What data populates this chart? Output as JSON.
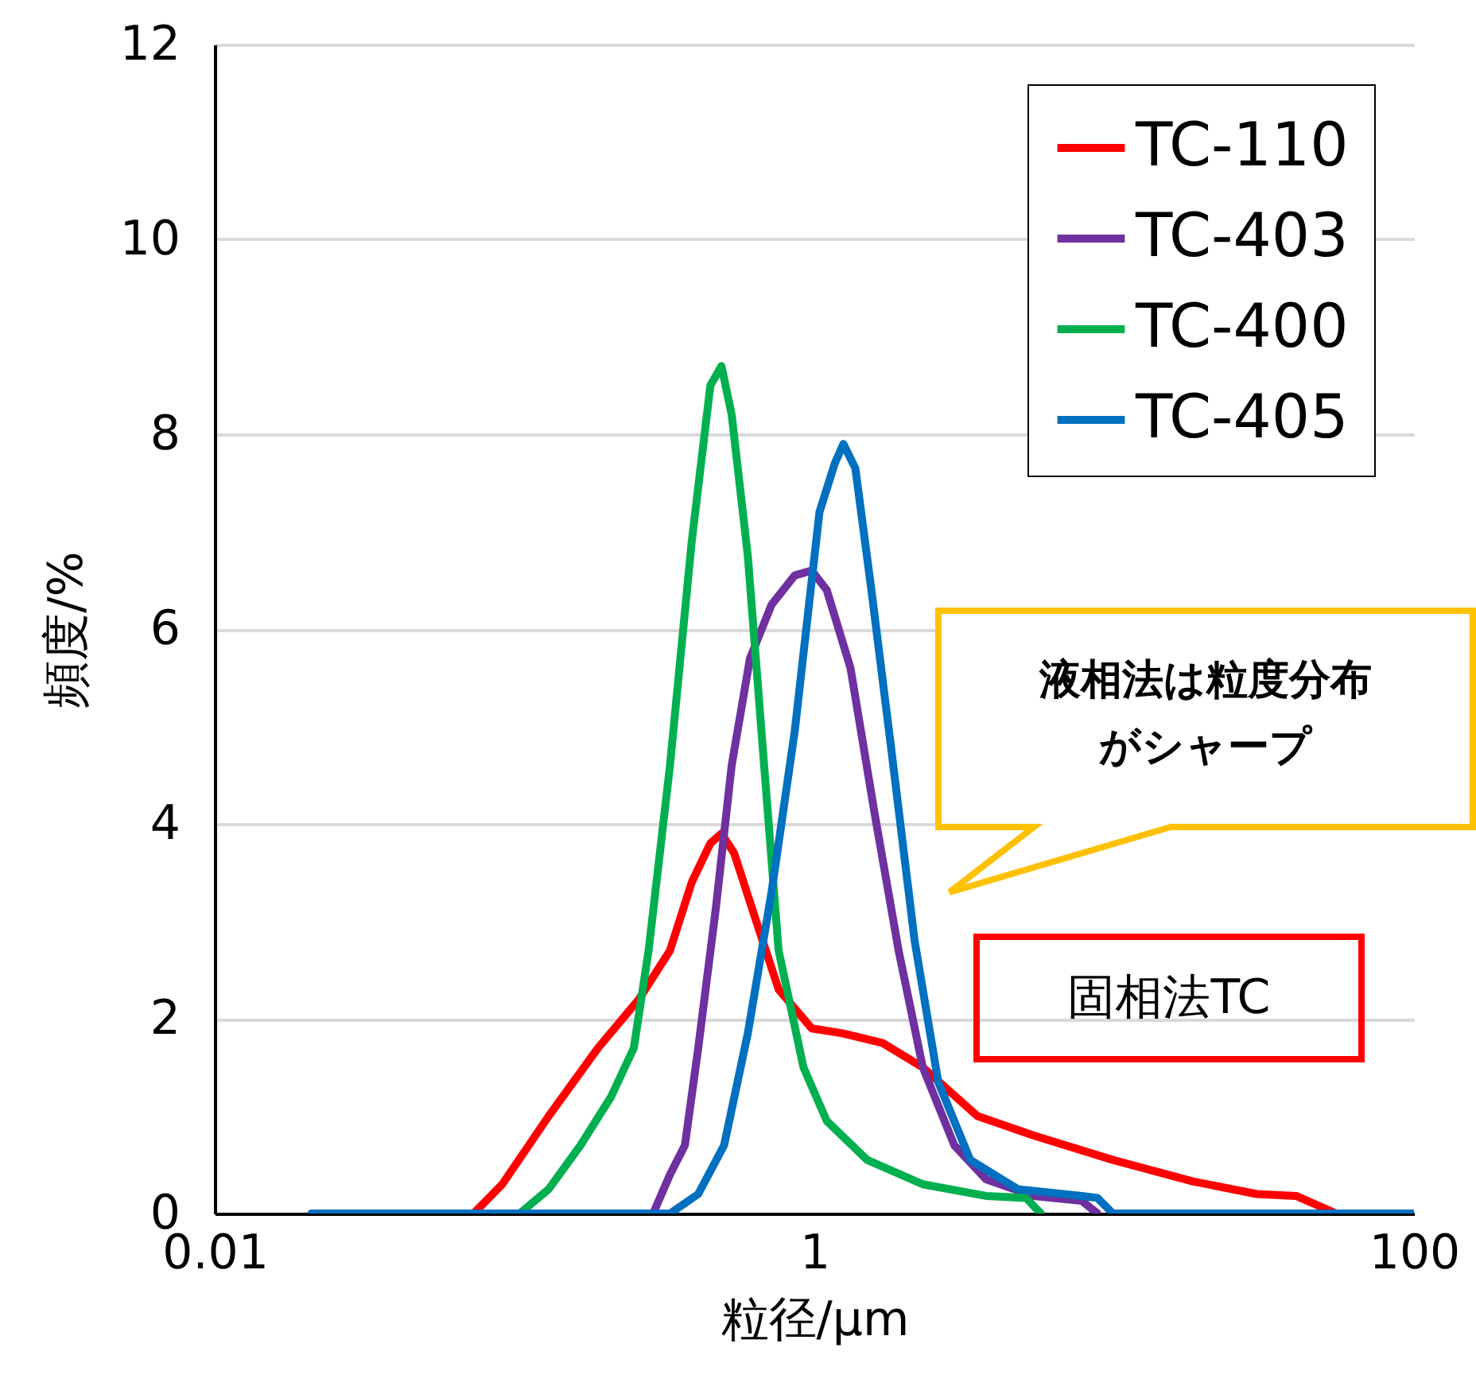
{
  "chart_data": {
    "type": "line",
    "xlabel": "粒径/μm",
    "ylabel": "頻度/%",
    "log": "x",
    "xlim": [
      0.01,
      100
    ],
    "xticks": [
      0.01,
      1,
      100
    ],
    "ylim": [
      0,
      12
    ],
    "yticks": [
      0,
      2,
      4,
      6,
      8,
      10,
      12
    ],
    "grid": "y",
    "legend": "top right",
    "marker": "none",
    "line_style": "solid",
    "annotations": [
      "液相法は粒度分布がシャープ",
      "固相法TC"
    ],
    "series": [
      {
        "name": "TC-110",
        "color": "#ff0000",
        "x": [
          0.073,
          0.091,
          0.13,
          0.19,
          0.26,
          0.33,
          0.39,
          0.45,
          0.49,
          0.54,
          0.64,
          0.76,
          0.98,
          1.24,
          1.69,
          2.3,
          3.5,
          5.4,
          9.9,
          18.3,
          29.9,
          40.5,
          55,
          100
        ],
        "values": [
          0,
          0.3,
          1.0,
          1.7,
          2.2,
          2.7,
          3.4,
          3.8,
          3.9,
          3.7,
          3.0,
          2.3,
          1.9,
          1.85,
          1.75,
          1.5,
          1.0,
          0.8,
          0.55,
          0.33,
          0.2,
          0.18,
          0,
          0
        ]
      },
      {
        "name": "TC-403",
        "color": "#7030a0",
        "x": [
          0.29,
          0.33,
          0.37,
          0.41,
          0.47,
          0.53,
          0.61,
          0.72,
          0.86,
          0.98,
          1.1,
          1.32,
          1.59,
          1.91,
          2.3,
          2.93,
          3.74,
          5.4,
          7.8,
          8.8
        ],
        "values": [
          0,
          0.4,
          0.7,
          1.7,
          3.15,
          4.6,
          5.7,
          6.25,
          6.55,
          6.6,
          6.4,
          5.6,
          4.1,
          2.7,
          1.5,
          0.7,
          0.35,
          0.18,
          0.13,
          0
        ]
      },
      {
        "name": "TC-400",
        "color": "#00b050",
        "x": [
          0.104,
          0.13,
          0.166,
          0.21,
          0.25,
          0.28,
          0.33,
          0.39,
          0.45,
          0.49,
          0.53,
          0.6,
          0.68,
          0.76,
          0.92,
          1.1,
          1.5,
          2.3,
          3.74,
          5.08,
          5.7
        ],
        "values": [
          0,
          0.25,
          0.7,
          1.2,
          1.7,
          2.7,
          4.6,
          6.9,
          8.5,
          8.7,
          8.2,
          6.75,
          4.6,
          2.7,
          1.5,
          0.95,
          0.55,
          0.3,
          0.18,
          0.16,
          0
        ]
      },
      {
        "name": "TC-405",
        "color": "#0070c0",
        "x": [
          0.021,
          0.33,
          0.41,
          0.5,
          0.6,
          0.72,
          0.86,
          1.04,
          1.17,
          1.25,
          1.37,
          1.55,
          1.8,
          2.16,
          2.59,
          3.31,
          4.77,
          7.8,
          8.8,
          9.9,
          100
        ],
        "values": [
          0,
          0,
          0.2,
          0.7,
          1.85,
          3.3,
          4.95,
          7.2,
          7.7,
          7.9,
          7.65,
          6.4,
          4.8,
          2.8,
          1.35,
          0.55,
          0.25,
          0.18,
          0.16,
          0,
          0
        ]
      }
    ]
  }
}
